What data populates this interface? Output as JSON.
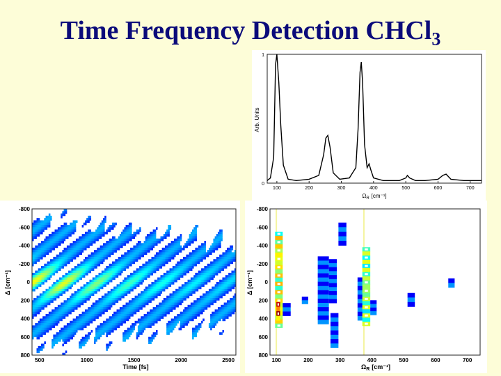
{
  "slide": {
    "title": "Time Frequency Detection CHCl",
    "title_subscript": "3",
    "background": "#fdfdd8",
    "title_color": "#0b0b7a"
  },
  "chart_data": [
    {
      "type": "line",
      "title": "",
      "xlabel": "Ω",
      "xlabel_sub": "R",
      "xlabel_unit": "[cm⁻¹]",
      "ylabel": "Arb. Units",
      "xlim": [
        70,
        735
      ],
      "ylim": [
        0,
        1
      ],
      "xticks": [
        100,
        200,
        300,
        400,
        500,
        600,
        700
      ],
      "yticks": [
        0,
        1
      ],
      "grid": false,
      "series": [
        {
          "x": [
            70,
            80,
            90,
            96,
            100,
            106,
            112,
            120,
            135,
            160,
            200,
            230,
            245,
            252,
            258,
            265,
            275,
            295,
            325,
            345,
            352,
            358,
            362,
            366,
            372,
            380,
            386,
            392,
            400,
            430,
            480,
            500,
            505,
            512,
            530,
            560,
            600,
            615,
            625,
            640,
            680,
            735
          ],
          "y": [
            0.02,
            0.04,
            0.2,
            0.92,
            1.0,
            0.78,
            0.45,
            0.14,
            0.03,
            0.02,
            0.03,
            0.06,
            0.22,
            0.35,
            0.37,
            0.28,
            0.08,
            0.03,
            0.04,
            0.12,
            0.42,
            0.86,
            0.94,
            0.78,
            0.3,
            0.12,
            0.15,
            0.1,
            0.04,
            0.02,
            0.02,
            0.04,
            0.06,
            0.04,
            0.02,
            0.02,
            0.03,
            0.06,
            0.07,
            0.03,
            0.02,
            0.02
          ]
        }
      ]
    },
    {
      "type": "heatmap",
      "title": "",
      "xlabel": "Time [fs]",
      "ylabel": "Δ [cm⁻¹]",
      "xlim": [
        420,
        2580
      ],
      "ylim": [
        -800,
        800
      ],
      "xticks": [
        500,
        1000,
        1500,
        2000,
        2500
      ],
      "yticks": [
        -800,
        -600,
        -400,
        -200,
        0,
        200,
        400,
        600,
        800
      ],
      "description_of_pattern": "oscillatory blue stripes with intensity highest near Δ≈0 and t<1200 fs",
      "colormap": [
        "#00008f",
        "#0000ff",
        "#0080ff",
        "#00ffff",
        "#ffff00",
        "#ff8000",
        "#ff0000"
      ]
    },
    {
      "type": "heatmap",
      "title": "",
      "xlabel": "Ω",
      "xlabel_sub": "R",
      "xlabel_unit": "[cm⁻¹]",
      "ylabel": "Δ [cm⁻¹]",
      "xlim": [
        80,
        740
      ],
      "ylim": [
        -800,
        800
      ],
      "xticks": [
        100,
        200,
        300,
        400,
        500,
        600,
        700
      ],
      "yticks": [
        -800,
        -600,
        -400,
        -200,
        0,
        200,
        400,
        600,
        800
      ],
      "markers_x": [
        100,
        375
      ],
      "blocks": [
        {
          "x": [
            96,
            120
          ],
          "y": [
            -550,
            500
          ],
          "level": 0.7
        },
        {
          "x": [
            100,
            112
          ],
          "y": [
            220,
            420
          ],
          "level": 1.0
        },
        {
          "x": [
            120,
            145
          ],
          "y": [
            230,
            370
          ],
          "level": 0.3
        },
        {
          "x": [
            180,
            200
          ],
          "y": [
            160,
            240
          ],
          "level": 0.3
        },
        {
          "x": [
            230,
            265
          ],
          "y": [
            -280,
            460
          ],
          "level": 0.45
        },
        {
          "x": [
            265,
            290
          ],
          "y": [
            -250,
            230
          ],
          "level": 0.3
        },
        {
          "x": [
            270,
            295
          ],
          "y": [
            340,
            720
          ],
          "level": 0.3
        },
        {
          "x": [
            295,
            320
          ],
          "y": [
            -650,
            -400
          ],
          "level": 0.3
        },
        {
          "x": [
            355,
            375
          ],
          "y": [
            -50,
            420
          ],
          "level": 0.3
        },
        {
          "x": [
            370,
            395
          ],
          "y": [
            -380,
            480
          ],
          "level": 0.6
        },
        {
          "x": [
            395,
            415
          ],
          "y": [
            200,
            360
          ],
          "level": 0.3
        },
        {
          "x": [
            512,
            535
          ],
          "y": [
            120,
            270
          ],
          "level": 0.3
        },
        {
          "x": [
            640,
            660
          ],
          "y": [
            -40,
            60
          ],
          "level": 0.3
        }
      ]
    }
  ]
}
